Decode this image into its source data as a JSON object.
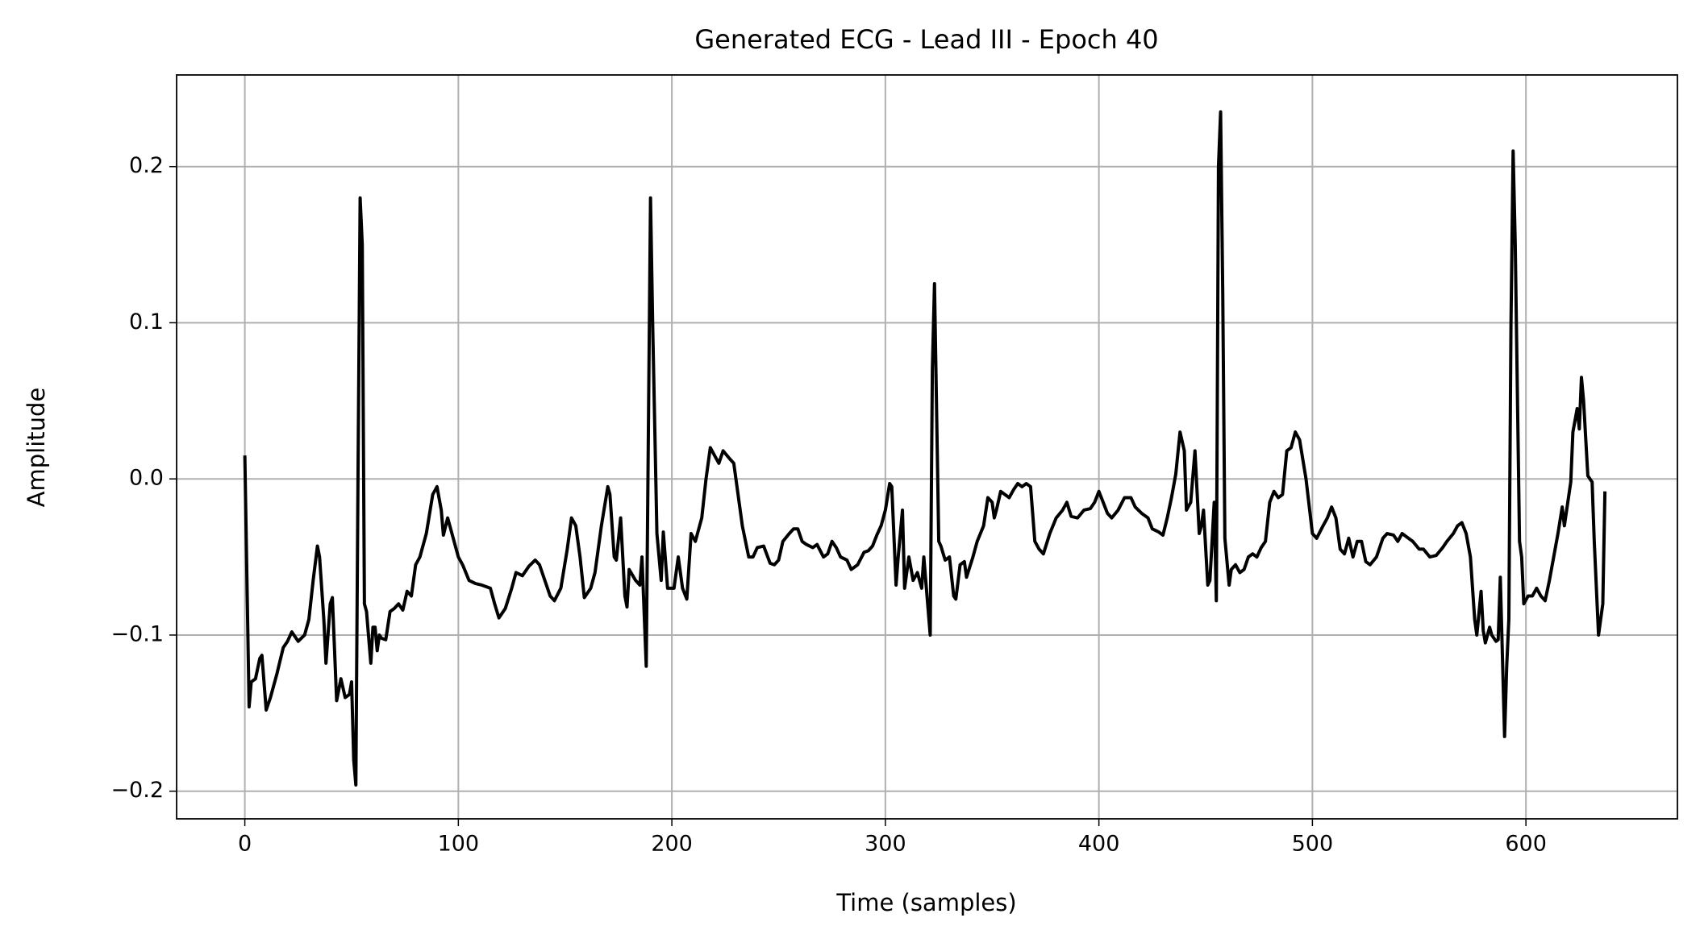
{
  "chart_data": {
    "type": "line",
    "title": "Generated ECG - Lead III - Epoch 40",
    "xlabel": "Time (samples)",
    "ylabel": "Amplitude",
    "color": "#000000",
    "grid": true,
    "xlim": [
      -31.95,
      670.95
    ],
    "ylim": [
      -0.2177,
      0.2587
    ],
    "xticks": [
      0,
      100,
      200,
      300,
      400,
      500,
      600
    ],
    "yticks": [
      {
        "value": -0.2,
        "label": "−0.2"
      },
      {
        "value": -0.1,
        "label": "−0.1"
      },
      {
        "value": 0,
        "label": "0.0"
      },
      0.1,
      0.2
    ],
    "x": [
      0,
      2,
      3,
      5,
      7,
      8,
      10,
      12,
      15,
      18,
      20,
      22,
      25,
      28,
      30,
      32,
      34,
      35,
      37,
      38,
      40,
      41,
      43,
      45,
      47,
      49,
      50,
      51,
      52,
      53,
      54,
      55,
      56,
      57,
      59,
      60,
      61,
      62,
      63,
      64,
      66,
      68,
      70,
      72,
      74,
      76,
      78,
      80,
      82,
      85,
      88,
      90,
      92,
      93,
      95,
      97,
      100,
      102,
      105,
      108,
      111,
      115,
      117,
      119,
      122,
      125,
      127,
      130,
      133,
      136,
      138,
      140,
      143,
      145,
      148,
      151,
      153,
      155,
      157,
      159,
      162,
      164,
      167,
      170,
      171,
      173,
      174,
      176,
      178,
      179,
      180,
      183,
      185,
      186,
      188,
      190,
      191,
      193,
      195,
      196,
      198,
      201,
      203,
      205,
      207,
      209,
      211,
      214,
      216,
      218,
      220,
      222,
      224,
      227,
      229,
      231,
      233,
      236,
      238,
      240,
      243,
      246,
      248,
      250,
      252,
      255,
      257,
      259,
      261,
      263,
      266,
      268,
      271,
      273,
      275,
      277,
      279,
      282,
      284,
      287,
      290,
      292,
      294,
      296,
      298,
      300,
      302,
      303,
      305,
      306,
      308,
      309,
      311,
      313,
      315,
      317,
      318,
      321,
      322,
      323,
      325,
      326,
      328,
      330,
      332,
      333,
      335,
      337,
      338,
      341,
      343,
      346,
      348,
      350,
      351,
      352,
      354,
      356,
      358,
      360,
      362,
      364,
      366,
      368,
      370,
      372,
      374,
      377,
      380,
      383,
      385,
      387,
      390,
      393,
      396,
      398,
      400,
      402,
      404,
      406,
      409,
      412,
      415,
      417,
      420,
      423,
      425,
      428,
      430,
      432,
      434,
      436,
      438,
      440,
      441,
      443,
      445,
      447,
      448,
      449,
      451,
      452,
      453,
      454,
      455,
      456,
      457,
      458,
      459,
      461,
      462,
      464,
      466,
      468,
      470,
      472,
      474,
      476,
      478,
      480,
      482,
      484,
      486,
      488,
      490,
      492,
      494,
      497,
      500,
      502,
      505,
      507,
      509,
      511,
      513,
      515,
      517,
      519,
      521,
      523,
      525,
      527,
      530,
      533,
      535,
      538,
      540,
      542,
      545,
      547,
      550,
      552,
      555,
      558,
      561,
      563,
      566,
      568,
      570,
      572,
      574,
      576,
      577,
      579,
      580,
      581,
      583,
      584,
      586,
      587,
      588,
      590,
      591,
      592,
      593,
      594,
      595,
      597,
      598,
      599,
      601,
      603,
      605,
      607,
      609,
      611,
      613,
      615,
      617,
      618,
      621,
      622,
      624,
      625,
      626,
      627,
      629,
      631,
      632,
      634,
      636,
      637
    ],
    "values": [
      0.015,
      -0.146,
      -0.13,
      -0.128,
      -0.115,
      -0.113,
      -0.148,
      -0.14,
      -0.125,
      -0.108,
      -0.104,
      -0.098,
      -0.104,
      -0.1,
      -0.09,
      -0.065,
      -0.043,
      -0.05,
      -0.09,
      -0.118,
      -0.08,
      -0.076,
      -0.142,
      -0.128,
      -0.14,
      -0.138,
      -0.13,
      -0.18,
      -0.196,
      0.0,
      0.18,
      0.15,
      -0.08,
      -0.085,
      -0.118,
      -0.095,
      -0.095,
      -0.11,
      -0.1,
      -0.102,
      -0.103,
      -0.085,
      -0.083,
      -0.08,
      -0.084,
      -0.072,
      -0.075,
      -0.055,
      -0.05,
      -0.035,
      -0.01,
      -0.005,
      -0.02,
      -0.036,
      -0.025,
      -0.035,
      -0.05,
      -0.055,
      -0.065,
      -0.067,
      -0.068,
      -0.07,
      -0.08,
      -0.089,
      -0.083,
      -0.07,
      -0.06,
      -0.062,
      -0.056,
      -0.052,
      -0.055,
      -0.063,
      -0.075,
      -0.078,
      -0.07,
      -0.045,
      -0.025,
      -0.03,
      -0.05,
      -0.076,
      -0.07,
      -0.06,
      -0.03,
      -0.005,
      -0.01,
      -0.05,
      -0.052,
      -0.025,
      -0.075,
      -0.082,
      -0.058,
      -0.065,
      -0.068,
      -0.05,
      -0.12,
      0.18,
      0.1,
      -0.035,
      -0.065,
      -0.034,
      -0.07,
      -0.07,
      -0.05,
      -0.07,
      -0.077,
      -0.035,
      -0.04,
      -0.025,
      0.0,
      0.02,
      0.015,
      0.01,
      0.018,
      0.013,
      0.01,
      -0.01,
      -0.03,
      -0.05,
      -0.05,
      -0.044,
      -0.043,
      -0.054,
      -0.055,
      -0.052,
      -0.04,
      -0.035,
      -0.032,
      -0.032,
      -0.04,
      -0.042,
      -0.044,
      -0.042,
      -0.05,
      -0.048,
      -0.04,
      -0.044,
      -0.05,
      -0.052,
      -0.058,
      -0.055,
      -0.047,
      -0.046,
      -0.043,
      -0.036,
      -0.03,
      -0.02,
      -0.003,
      -0.005,
      -0.068,
      -0.05,
      -0.02,
      -0.07,
      -0.05,
      -0.065,
      -0.06,
      -0.07,
      -0.05,
      -0.1,
      0.07,
      0.125,
      -0.04,
      -0.043,
      -0.052,
      -0.05,
      -0.075,
      -0.077,
      -0.055,
      -0.053,
      -0.063,
      -0.05,
      -0.04,
      -0.03,
      -0.012,
      -0.015,
      -0.025,
      -0.02,
      -0.008,
      -0.01,
      -0.012,
      -0.007,
      -0.003,
      -0.005,
      -0.003,
      -0.005,
      -0.04,
      -0.045,
      -0.048,
      -0.035,
      -0.025,
      -0.02,
      -0.015,
      -0.024,
      -0.025,
      -0.02,
      -0.019,
      -0.015,
      -0.008,
      -0.015,
      -0.022,
      -0.025,
      -0.02,
      -0.012,
      -0.012,
      -0.018,
      -0.022,
      -0.025,
      -0.032,
      -0.034,
      -0.036,
      -0.025,
      -0.012,
      0.003,
      0.03,
      0.018,
      -0.02,
      -0.015,
      0.018,
      -0.035,
      -0.03,
      -0.02,
      -0.068,
      -0.065,
      -0.04,
      -0.015,
      -0.078,
      0.2,
      0.235,
      0.12,
      -0.038,
      -0.068,
      -0.058,
      -0.055,
      -0.06,
      -0.058,
      -0.05,
      -0.048,
      -0.05,
      -0.044,
      -0.04,
      -0.015,
      -0.008,
      -0.012,
      -0.01,
      0.018,
      0.02,
      0.03,
      0.025,
      0.0,
      -0.035,
      -0.038,
      -0.03,
      -0.025,
      -0.018,
      -0.025,
      -0.045,
      -0.048,
      -0.038,
      -0.05,
      -0.04,
      -0.04,
      -0.053,
      -0.055,
      -0.05,
      -0.038,
      -0.035,
      -0.036,
      -0.04,
      -0.035,
      -0.038,
      -0.04,
      -0.045,
      -0.045,
      -0.05,
      -0.049,
      -0.044,
      -0.04,
      -0.035,
      -0.03,
      -0.028,
      -0.035,
      -0.05,
      -0.09,
      -0.1,
      -0.072,
      -0.097,
      -0.105,
      -0.095,
      -0.1,
      -0.104,
      -0.103,
      -0.063,
      -0.165,
      -0.12,
      -0.09,
      0.1,
      0.21,
      0.15,
      -0.04,
      -0.05,
      -0.08,
      -0.075,
      -0.075,
      -0.07,
      -0.075,
      -0.078,
      -0.065,
      -0.05,
      -0.035,
      -0.018,
      -0.03,
      -0.002,
      0.03,
      0.045,
      0.032,
      0.065,
      0.05,
      0.002,
      -0.002,
      -0.04,
      -0.1,
      -0.08,
      -0.008
    ]
  }
}
